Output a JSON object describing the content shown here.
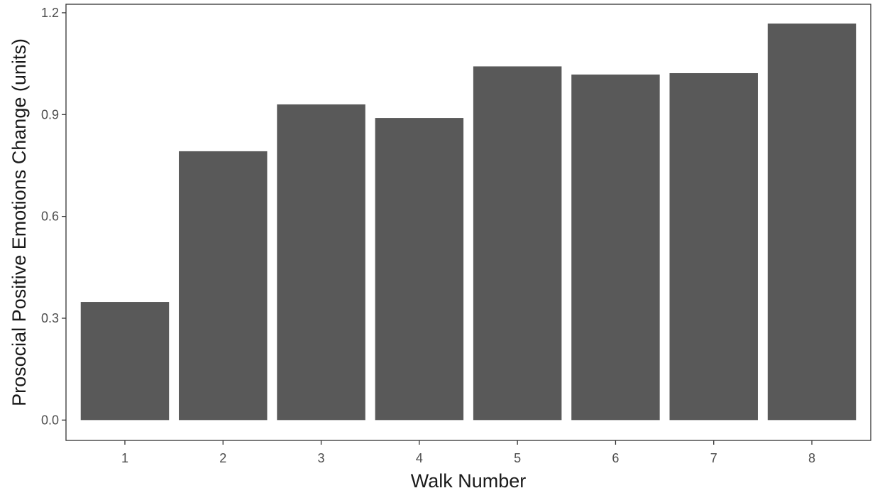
{
  "chart_data": {
    "type": "bar",
    "categories": [
      "1",
      "2",
      "3",
      "4",
      "5",
      "6",
      "7",
      "8"
    ],
    "values": [
      0.348,
      0.792,
      0.93,
      0.89,
      1.042,
      1.018,
      1.022,
      1.168
    ],
    "xlabel": "Walk Number",
    "ylabel": "Prosocial Positive Emotions Change (units)",
    "ylim": [
      -0.06,
      1.225
    ],
    "yticks": [
      0.0,
      0.3,
      0.6,
      0.9,
      1.2
    ],
    "ytick_labels": [
      "0.0",
      "0.3",
      "0.6",
      "0.9",
      "1.2"
    ],
    "grid": false,
    "legend": "none",
    "bar_color": "#595959",
    "panel_border_color": "#333333"
  }
}
